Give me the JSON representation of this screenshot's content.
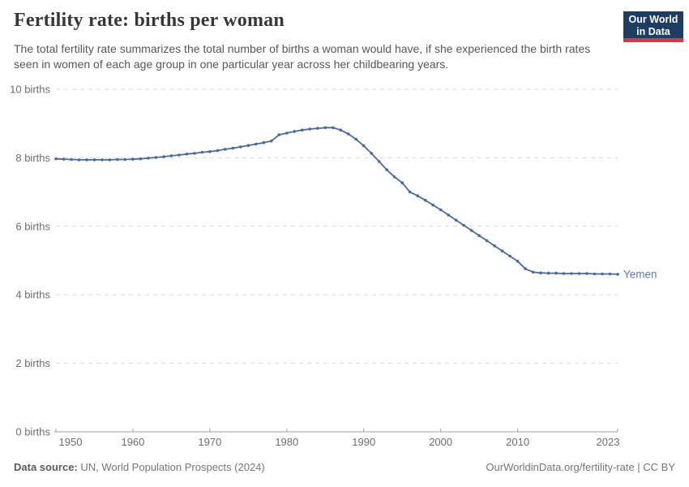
{
  "header": {
    "title": "Fertility rate: births per woman",
    "subtitle": "The total fertility rate summarizes the total number of births a woman would have, if she experienced the birth rates seen in women of each age group in one particular year across her childbearing years.",
    "logo_line1": "Our World",
    "logo_line2": "in Data"
  },
  "footer": {
    "source_label": "Data source:",
    "source_value": " UN, World Population Prospects (2024)",
    "link": "OurWorldinData.org/fertility-rate | CC BY"
  },
  "colors": {
    "line": "#4c6a9c",
    "entity_label": "#5f7ba6",
    "gridline": "#d9d9d9",
    "axis": "#a0a0a0",
    "tick_label": "#6d6d6d",
    "logo_bg": "#1d3d63",
    "logo_stripe": "#cf3b49"
  },
  "chart_data": {
    "type": "line",
    "title": "Fertility rate: births per woman",
    "xlabel": "",
    "ylabel": "births per woman",
    "xlim": [
      1950,
      2023
    ],
    "ylim": [
      0,
      10
    ],
    "grid": "horizontal-dashed",
    "legend": "end-of-line-label",
    "entity_label": "Yemen",
    "yticks": [
      {
        "value": 0,
        "label": "0 births"
      },
      {
        "value": 2,
        "label": "2 births"
      },
      {
        "value": 4,
        "label": "4 births"
      },
      {
        "value": 6,
        "label": "6 births"
      },
      {
        "value": 8,
        "label": "8 births"
      },
      {
        "value": 10,
        "label": "10 births"
      }
    ],
    "xticks": [
      {
        "value": 1950,
        "label": "1950"
      },
      {
        "value": 1960,
        "label": "1960"
      },
      {
        "value": 1970,
        "label": "1970"
      },
      {
        "value": 1980,
        "label": "1980"
      },
      {
        "value": 1990,
        "label": "1990"
      },
      {
        "value": 2000,
        "label": "2000"
      },
      {
        "value": 2010,
        "label": "2010"
      },
      {
        "value": 2023,
        "label": "2023"
      }
    ],
    "x": [
      1950,
      1951,
      1952,
      1953,
      1954,
      1955,
      1956,
      1957,
      1958,
      1959,
      1960,
      1961,
      1962,
      1963,
      1964,
      1965,
      1966,
      1967,
      1968,
      1969,
      1970,
      1971,
      1972,
      1973,
      1974,
      1975,
      1976,
      1977,
      1978,
      1979,
      1980,
      1981,
      1982,
      1983,
      1984,
      1985,
      1986,
      1987,
      1988,
      1989,
      1990,
      1991,
      1992,
      1993,
      1994,
      1995,
      1996,
      1997,
      1998,
      1999,
      2000,
      2001,
      2002,
      2003,
      2004,
      2005,
      2006,
      2007,
      2008,
      2009,
      2010,
      2011,
      2012,
      2013,
      2014,
      2015,
      2016,
      2017,
      2018,
      2019,
      2020,
      2021,
      2022,
      2023
    ],
    "series": [
      {
        "name": "Yemen",
        "values": [
          7.97,
          7.96,
          7.95,
          7.94,
          7.94,
          7.94,
          7.94,
          7.94,
          7.95,
          7.95,
          7.96,
          7.97,
          7.99,
          8.01,
          8.03,
          8.06,
          8.08,
          8.11,
          8.13,
          8.16,
          8.18,
          8.21,
          8.25,
          8.28,
          8.32,
          8.36,
          8.4,
          8.44,
          8.49,
          8.67,
          8.72,
          8.77,
          8.81,
          8.84,
          8.86,
          8.88,
          8.88,
          8.81,
          8.7,
          8.54,
          8.35,
          8.13,
          7.89,
          7.65,
          7.44,
          7.27,
          7.0,
          6.89,
          6.76,
          6.62,
          6.48,
          6.33,
          6.18,
          6.03,
          5.88,
          5.73,
          5.58,
          5.43,
          5.28,
          5.13,
          4.98,
          4.76,
          4.66,
          4.64,
          4.63,
          4.63,
          4.62,
          4.62,
          4.62,
          4.62,
          4.61,
          4.61,
          4.61,
          4.6
        ]
      }
    ]
  }
}
